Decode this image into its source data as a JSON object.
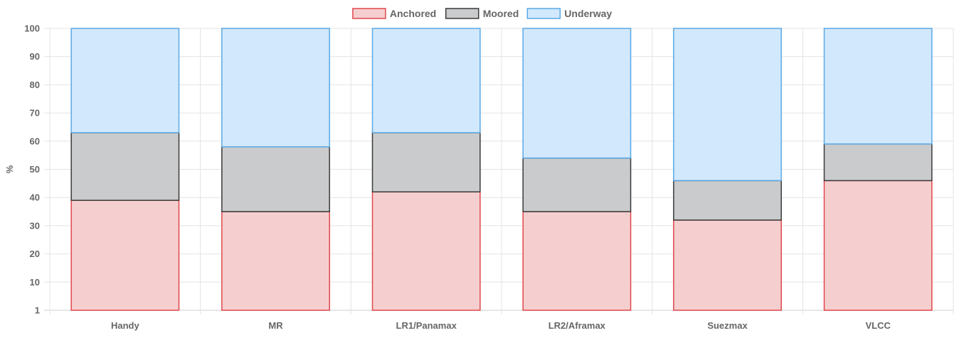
{
  "chart_data": {
    "type": "bar",
    "stacked": true,
    "title": "",
    "xlabel": "",
    "ylabel": "%",
    "ylim": [
      0,
      100
    ],
    "y_ticks": [
      "1",
      "10",
      "20",
      "30",
      "40",
      "50",
      "60",
      "70",
      "80",
      "90",
      "100"
    ],
    "grid": true,
    "legend_position": "top",
    "categories": [
      "Handy",
      "MR",
      "LR1/Panamax",
      "LR2/Aframax",
      "Suezmax",
      "VLCC"
    ],
    "series": [
      {
        "name": "Anchored",
        "fill": "#f5cfcf",
        "stroke": "#e0474c",
        "values": [
          39,
          35,
          42,
          35,
          32,
          46
        ]
      },
      {
        "name": "Moored",
        "fill": "#c9cbcd",
        "stroke": "#3a3a3a",
        "values": [
          24,
          23,
          21,
          19,
          14,
          13
        ]
      },
      {
        "name": "Underway",
        "fill": "#d2e8fc",
        "stroke": "#5aa9e6",
        "values": [
          37,
          42,
          37,
          46,
          54,
          41
        ]
      }
    ]
  }
}
